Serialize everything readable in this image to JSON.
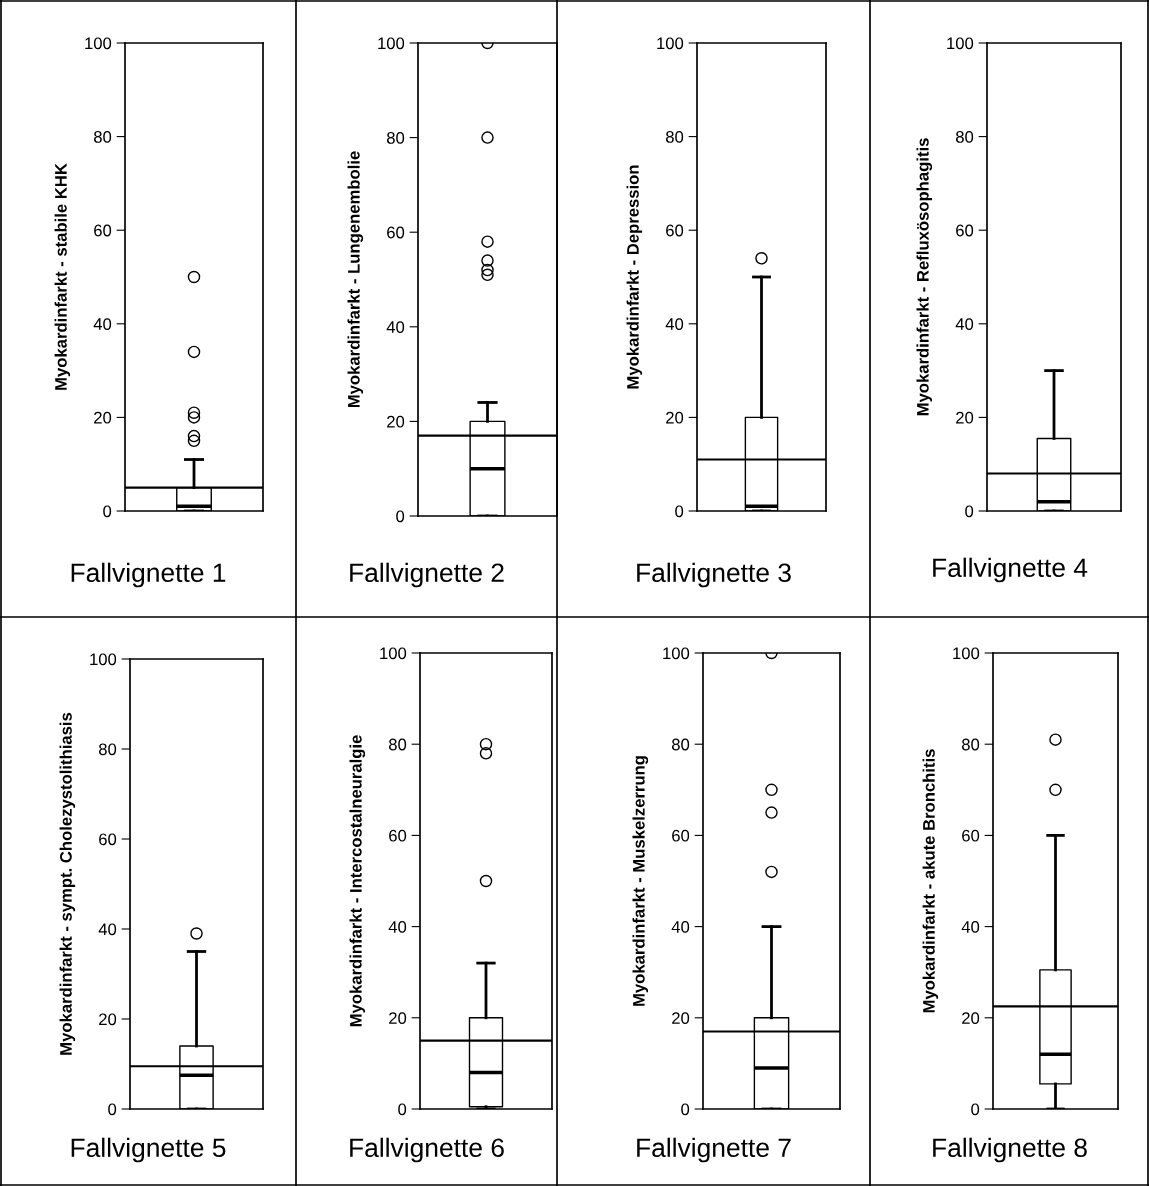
{
  "chart_data": [
    {
      "type": "box",
      "title": "Fallvignette 1",
      "ylabel": "Myokardinfarkt - stabile KHK",
      "categories": [
        null
      ],
      "boxes": [
        {
          "low": 0,
          "q1": 0,
          "median": 1,
          "q3": 5,
          "high": 11,
          "outliers": [
            15,
            16,
            20,
            21,
            34,
            50
          ]
        }
      ],
      "ref_lines": [
        {
          "axis": "y",
          "value": 5,
          "color": "#000000"
        }
      ],
      "ylim": [
        0,
        100
      ],
      "yticks": [
        0,
        20,
        40,
        60,
        80,
        100
      ],
      "tick_labels": "y",
      "grid": false,
      "legend": false
    },
    {
      "type": "box",
      "title": "Fallvignette 2",
      "ylabel": "Myokardinfarkt - Lungenembolie",
      "categories": [
        null
      ],
      "boxes": [
        {
          "low": 0,
          "q1": 0,
          "median": 10,
          "q3": 20,
          "high": 24,
          "outliers": [
            51,
            52,
            54,
            58,
            80,
            100
          ]
        }
      ],
      "ref_lines": [
        {
          "axis": "y",
          "value": 17,
          "color": "#000000"
        }
      ],
      "ylim": [
        0,
        100
      ],
      "yticks": [
        0,
        20,
        40,
        60,
        80,
        100
      ],
      "tick_labels": "y",
      "grid": false,
      "legend": false
    },
    {
      "type": "box",
      "title": "Fallvignette 3",
      "ylabel": "Myokardinfarkt - Depression",
      "categories": [
        null
      ],
      "boxes": [
        {
          "low": 0,
          "q1": 0,
          "median": 1,
          "q3": 20,
          "high": 50,
          "outliers": [
            54
          ]
        }
      ],
      "ref_lines": [
        {
          "axis": "y",
          "value": 11,
          "color": "#000000"
        }
      ],
      "ylim": [
        0,
        100
      ],
      "yticks": [
        0,
        20,
        40,
        60,
        80,
        100
      ],
      "tick_labels": "y",
      "grid": false,
      "legend": false
    },
    {
      "type": "box",
      "title": "Fallvignette 4",
      "ylabel": "Myokardinfarkt - Refluxösophagitis",
      "categories": [
        null
      ],
      "boxes": [
        {
          "low": 0,
          "q1": 0,
          "median": 2,
          "q3": 15.5,
          "high": 30
        }
      ],
      "ref_lines": [
        {
          "axis": "y",
          "value": 8,
          "color": "#000000"
        }
      ],
      "ylim": [
        0,
        100
      ],
      "yticks": [
        0,
        20,
        40,
        60,
        80,
        100
      ],
      "tick_labels": "y",
      "grid": false,
      "legend": false
    },
    {
      "type": "box",
      "title": "Fallvignette 5",
      "ylabel": "Myokardinfarkt - sympt. Cholezystolithiasis",
      "categories": [
        null
      ],
      "boxes": [
        {
          "low": 0,
          "q1": 0,
          "median": 7.5,
          "q3": 14,
          "high": 35,
          "outliers": [
            39
          ]
        }
      ],
      "ref_lines": [
        {
          "axis": "y",
          "value": 9.5,
          "color": "#000000"
        }
      ],
      "ylim": [
        0,
        100
      ],
      "yticks": [
        0,
        20,
        40,
        60,
        80,
        100
      ],
      "tick_labels": "y",
      "grid": false,
      "legend": false
    },
    {
      "type": "box",
      "title": "Fallvignette 6",
      "ylabel": "Myokardinfarkt - Intercostalneuralgie",
      "categories": [
        null
      ],
      "boxes": [
        {
          "low": 0,
          "q1": 0.5,
          "median": 8,
          "q3": 20,
          "high": 32,
          "outliers": [
            50,
            78,
            80
          ]
        }
      ],
      "ref_lines": [
        {
          "axis": "y",
          "value": 15,
          "color": "#000000"
        }
      ],
      "ylim": [
        0,
        100
      ],
      "yticks": [
        0,
        20,
        40,
        60,
        80,
        100
      ],
      "tick_labels": "y",
      "grid": false,
      "legend": false
    },
    {
      "type": "box",
      "title": "Fallvignette 7",
      "ylabel": "Myokardinfarkt - Muskelzerrung",
      "categories": [
        null
      ],
      "boxes": [
        {
          "low": 0,
          "q1": 0,
          "median": 9,
          "q3": 20,
          "high": 40,
          "outliers": [
            52,
            65,
            70,
            100
          ]
        }
      ],
      "ref_lines": [
        {
          "axis": "y",
          "value": 17,
          "color": "#000000"
        }
      ],
      "ylim": [
        0,
        100
      ],
      "yticks": [
        0,
        20,
        40,
        60,
        80,
        100
      ],
      "tick_labels": "y",
      "grid": false,
      "legend": false
    },
    {
      "type": "box",
      "title": "Fallvignette 8",
      "ylabel": "Myokardinfarkt - akute Bronchitis",
      "categories": [
        null
      ],
      "boxes": [
        {
          "low": 0,
          "q1": 5.5,
          "median": 12,
          "q3": 30.5,
          "high": 60,
          "outliers": [
            70,
            81
          ]
        }
      ],
      "ref_lines": [
        {
          "axis": "y",
          "value": 22.5,
          "color": "#000000"
        }
      ],
      "ylim": [
        0,
        100
      ],
      "yticks": [
        0,
        20,
        40,
        60,
        80,
        100
      ],
      "tick_labels": "y",
      "grid": false,
      "legend": false
    }
  ]
}
